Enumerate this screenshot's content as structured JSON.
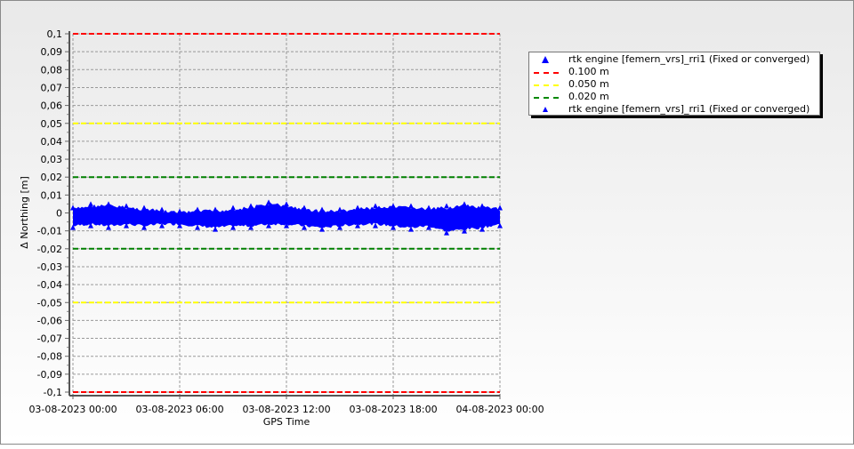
{
  "chart_data": {
    "type": "scatter",
    "xlabel": "GPS Time",
    "ylabel": "Δ Northing [m]",
    "x_tick_labels": [
      "03-08-2023 00:00",
      "03-08-2023 06:00",
      "03-08-2023 12:00",
      "03-08-2023 18:00",
      "04-08-2023 00:00"
    ],
    "y_tick_labels": [
      "0,1",
      "0,09",
      "0,08",
      "0,07",
      "0,06",
      "0,05",
      "0,04",
      "0,03",
      "0,02",
      "0,01",
      "0",
      "-0,01",
      "-0,02",
      "-0,03",
      "-0,04",
      "-0,05",
      "-0,06",
      "-0,07",
      "-0,08",
      "-0,09",
      "-0,1"
    ],
    "ylim": [
      -0.1,
      0.1
    ],
    "xlim_hours": [
      0,
      24
    ],
    "grid": true,
    "legend_position": "right",
    "thresholds": [
      {
        "name": "0.100 m",
        "values": [
          0.1,
          -0.1
        ],
        "color": "#ff0000"
      },
      {
        "name": "0.050 m",
        "values": [
          0.05,
          -0.05
        ],
        "color": "#ffff00"
      },
      {
        "name": "0.020 m",
        "values": [
          0.02,
          -0.02
        ],
        "color": "#008000"
      }
    ],
    "series": [
      {
        "name": "rtk engine [femern_vrs]_rri1 (Fixed or converged)",
        "color": "#0000ff",
        "hours": [
          0,
          1,
          2,
          3,
          4,
          5,
          6,
          7,
          8,
          9,
          10,
          11,
          12,
          13,
          14,
          15,
          16,
          17,
          18,
          19,
          20,
          21,
          22,
          23,
          24
        ],
        "upper": [
          0.003,
          0.005,
          0.005,
          0.004,
          0.003,
          0.002,
          0.001,
          0.002,
          0.002,
          0.003,
          0.004,
          0.006,
          0.005,
          0.003,
          0.002,
          0.002,
          0.003,
          0.004,
          0.004,
          0.004,
          0.003,
          0.004,
          0.005,
          0.004,
          0.003
        ],
        "lower": [
          -0.008,
          -0.007,
          -0.008,
          -0.007,
          -0.008,
          -0.007,
          -0.007,
          -0.008,
          -0.009,
          -0.008,
          -0.008,
          -0.007,
          -0.007,
          -0.008,
          -0.009,
          -0.008,
          -0.007,
          -0.007,
          -0.008,
          -0.009,
          -0.008,
          -0.011,
          -0.01,
          -0.009,
          -0.007
        ]
      }
    ]
  },
  "legend": {
    "items": [
      {
        "label": "rtk engine [femern_vrs]_rri1 (Fixed or converged)",
        "color": "#0000ff"
      },
      {
        "label": "0.100 m",
        "color": "#ff0000"
      },
      {
        "label": "0.050 m",
        "color": "#ffff00"
      },
      {
        "label": "0.020 m",
        "color": "#008000"
      },
      {
        "label": "rtk engine [femern_vrs]_rri1 (Fixed or converged)",
        "color": "#0000ff"
      }
    ]
  }
}
